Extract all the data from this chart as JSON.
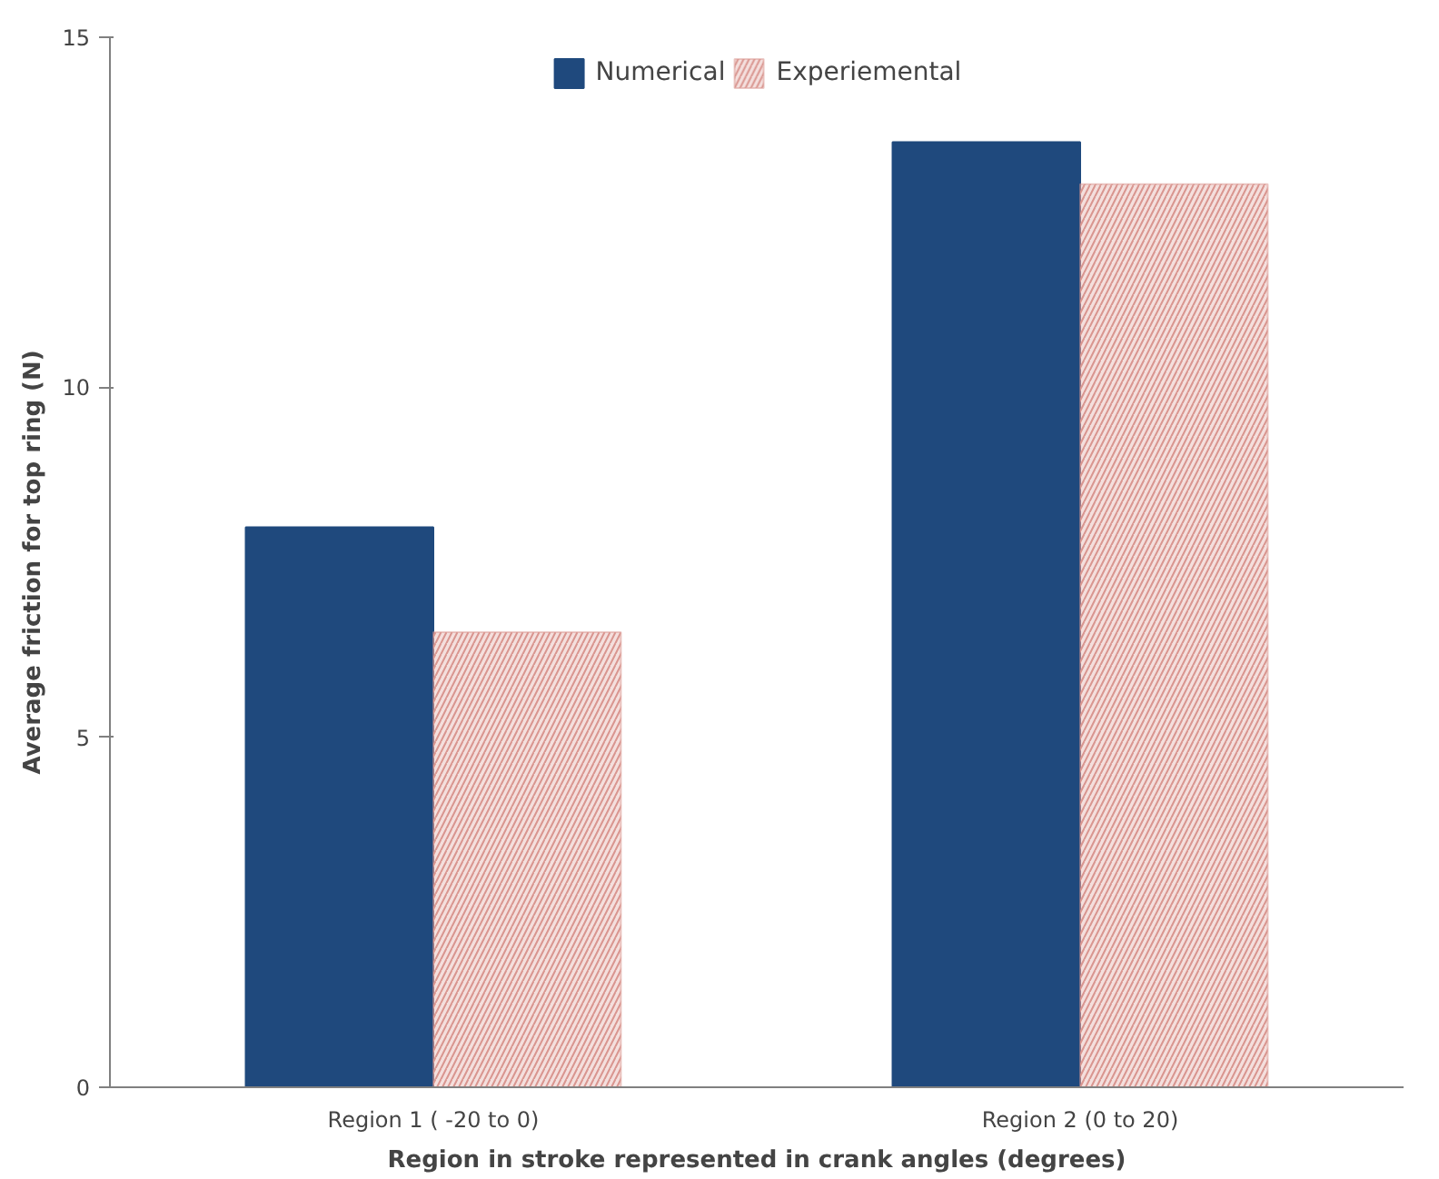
{
  "chart_data": {
    "type": "bar",
    "categories": [
      "Region 1 ( -20 to 0)",
      "Region 2 (0 to 20)"
    ],
    "series": [
      {
        "name": "Numerical",
        "color": "#1f497d",
        "values": [
          8.0,
          13.5
        ]
      },
      {
        "name": "Experiemental",
        "color": "#d9958f",
        "values": [
          6.5,
          12.9
        ]
      }
    ],
    "xlabel": "Region in stroke represented in crank angles (degrees)",
    "ylabel": "Average friction for top ring (N)",
    "ylim": [
      0,
      15
    ],
    "yticks": [
      0,
      5,
      10,
      15
    ],
    "grid": false,
    "legend": "top"
  }
}
